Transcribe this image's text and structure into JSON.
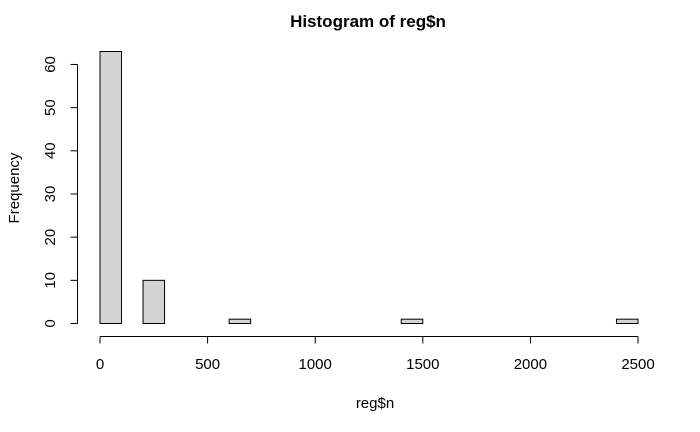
{
  "chart_data": {
    "type": "bar",
    "title": "Histogram of reg$n",
    "xlabel": "reg$n",
    "ylabel": "Frequency",
    "bin_width": 100,
    "xlim": [
      0,
      2500
    ],
    "ylim": [
      0,
      63
    ],
    "x_ticks": [
      0,
      500,
      1000,
      1500,
      2000,
      2500
    ],
    "y_ticks": [
      0,
      10,
      20,
      30,
      40,
      50,
      60
    ],
    "bins": [
      {
        "start": 0,
        "end": 100,
        "count": 63
      },
      {
        "start": 100,
        "end": 200,
        "count": 0
      },
      {
        "start": 200,
        "end": 300,
        "count": 10
      },
      {
        "start": 300,
        "end": 400,
        "count": 0
      },
      {
        "start": 400,
        "end": 500,
        "count": 0
      },
      {
        "start": 500,
        "end": 600,
        "count": 0
      },
      {
        "start": 600,
        "end": 700,
        "count": 1
      },
      {
        "start": 700,
        "end": 800,
        "count": 0
      },
      {
        "start": 800,
        "end": 900,
        "count": 0
      },
      {
        "start": 900,
        "end": 1000,
        "count": 0
      },
      {
        "start": 1000,
        "end": 1100,
        "count": 0
      },
      {
        "start": 1100,
        "end": 1200,
        "count": 0
      },
      {
        "start": 1200,
        "end": 1300,
        "count": 0
      },
      {
        "start": 1300,
        "end": 1400,
        "count": 0
      },
      {
        "start": 1400,
        "end": 1500,
        "count": 1
      },
      {
        "start": 1500,
        "end": 1600,
        "count": 0
      },
      {
        "start": 1600,
        "end": 1700,
        "count": 0
      },
      {
        "start": 1700,
        "end": 1800,
        "count": 0
      },
      {
        "start": 1800,
        "end": 1900,
        "count": 0
      },
      {
        "start": 1900,
        "end": 2000,
        "count": 0
      },
      {
        "start": 2000,
        "end": 2100,
        "count": 0
      },
      {
        "start": 2100,
        "end": 2200,
        "count": 0
      },
      {
        "start": 2200,
        "end": 2300,
        "count": 0
      },
      {
        "start": 2300,
        "end": 2400,
        "count": 0
      },
      {
        "start": 2400,
        "end": 2500,
        "count": 1
      }
    ],
    "bar_fill": "#d3d3d3",
    "bar_stroke": "#000000",
    "grid": false,
    "legend": "none"
  }
}
